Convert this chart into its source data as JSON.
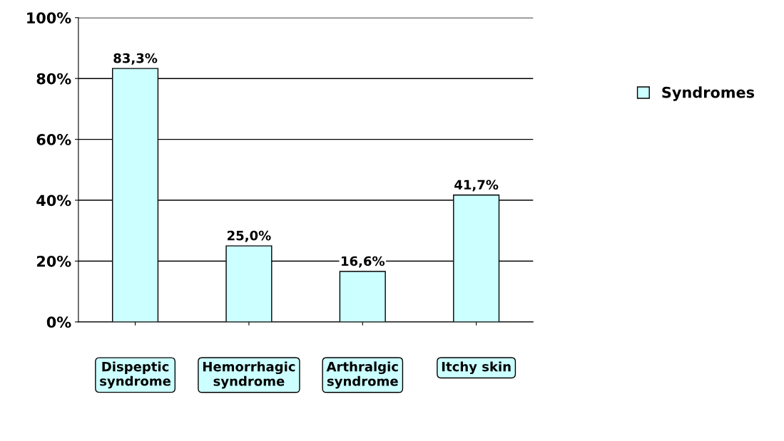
{
  "chart_data": {
    "type": "bar",
    "categories": [
      "Dispeptic\nsyndrome",
      "Hemorrhagic\nsyndrome",
      "Arthralgic\nsyndrome",
      "Itchy skin"
    ],
    "series": [
      {
        "name": "Syndromes",
        "color": "#ccffff",
        "values": [
          83.3,
          25.0,
          16.6,
          41.7
        ],
        "value_labels": [
          "83,3%",
          "25,0%",
          "16,6%",
          "41,7%"
        ]
      }
    ],
    "ylim": [
      0,
      100
    ],
    "yticks": [
      {
        "value": 0,
        "label": "0%"
      },
      {
        "value": 20,
        "label": "20%"
      },
      {
        "value": 40,
        "label": "40%"
      },
      {
        "value": 60,
        "label": "60%"
      },
      {
        "value": 80,
        "label": "80%"
      },
      {
        "value": 100,
        "label": "100%"
      }
    ],
    "grid": "y",
    "legend": "right"
  }
}
